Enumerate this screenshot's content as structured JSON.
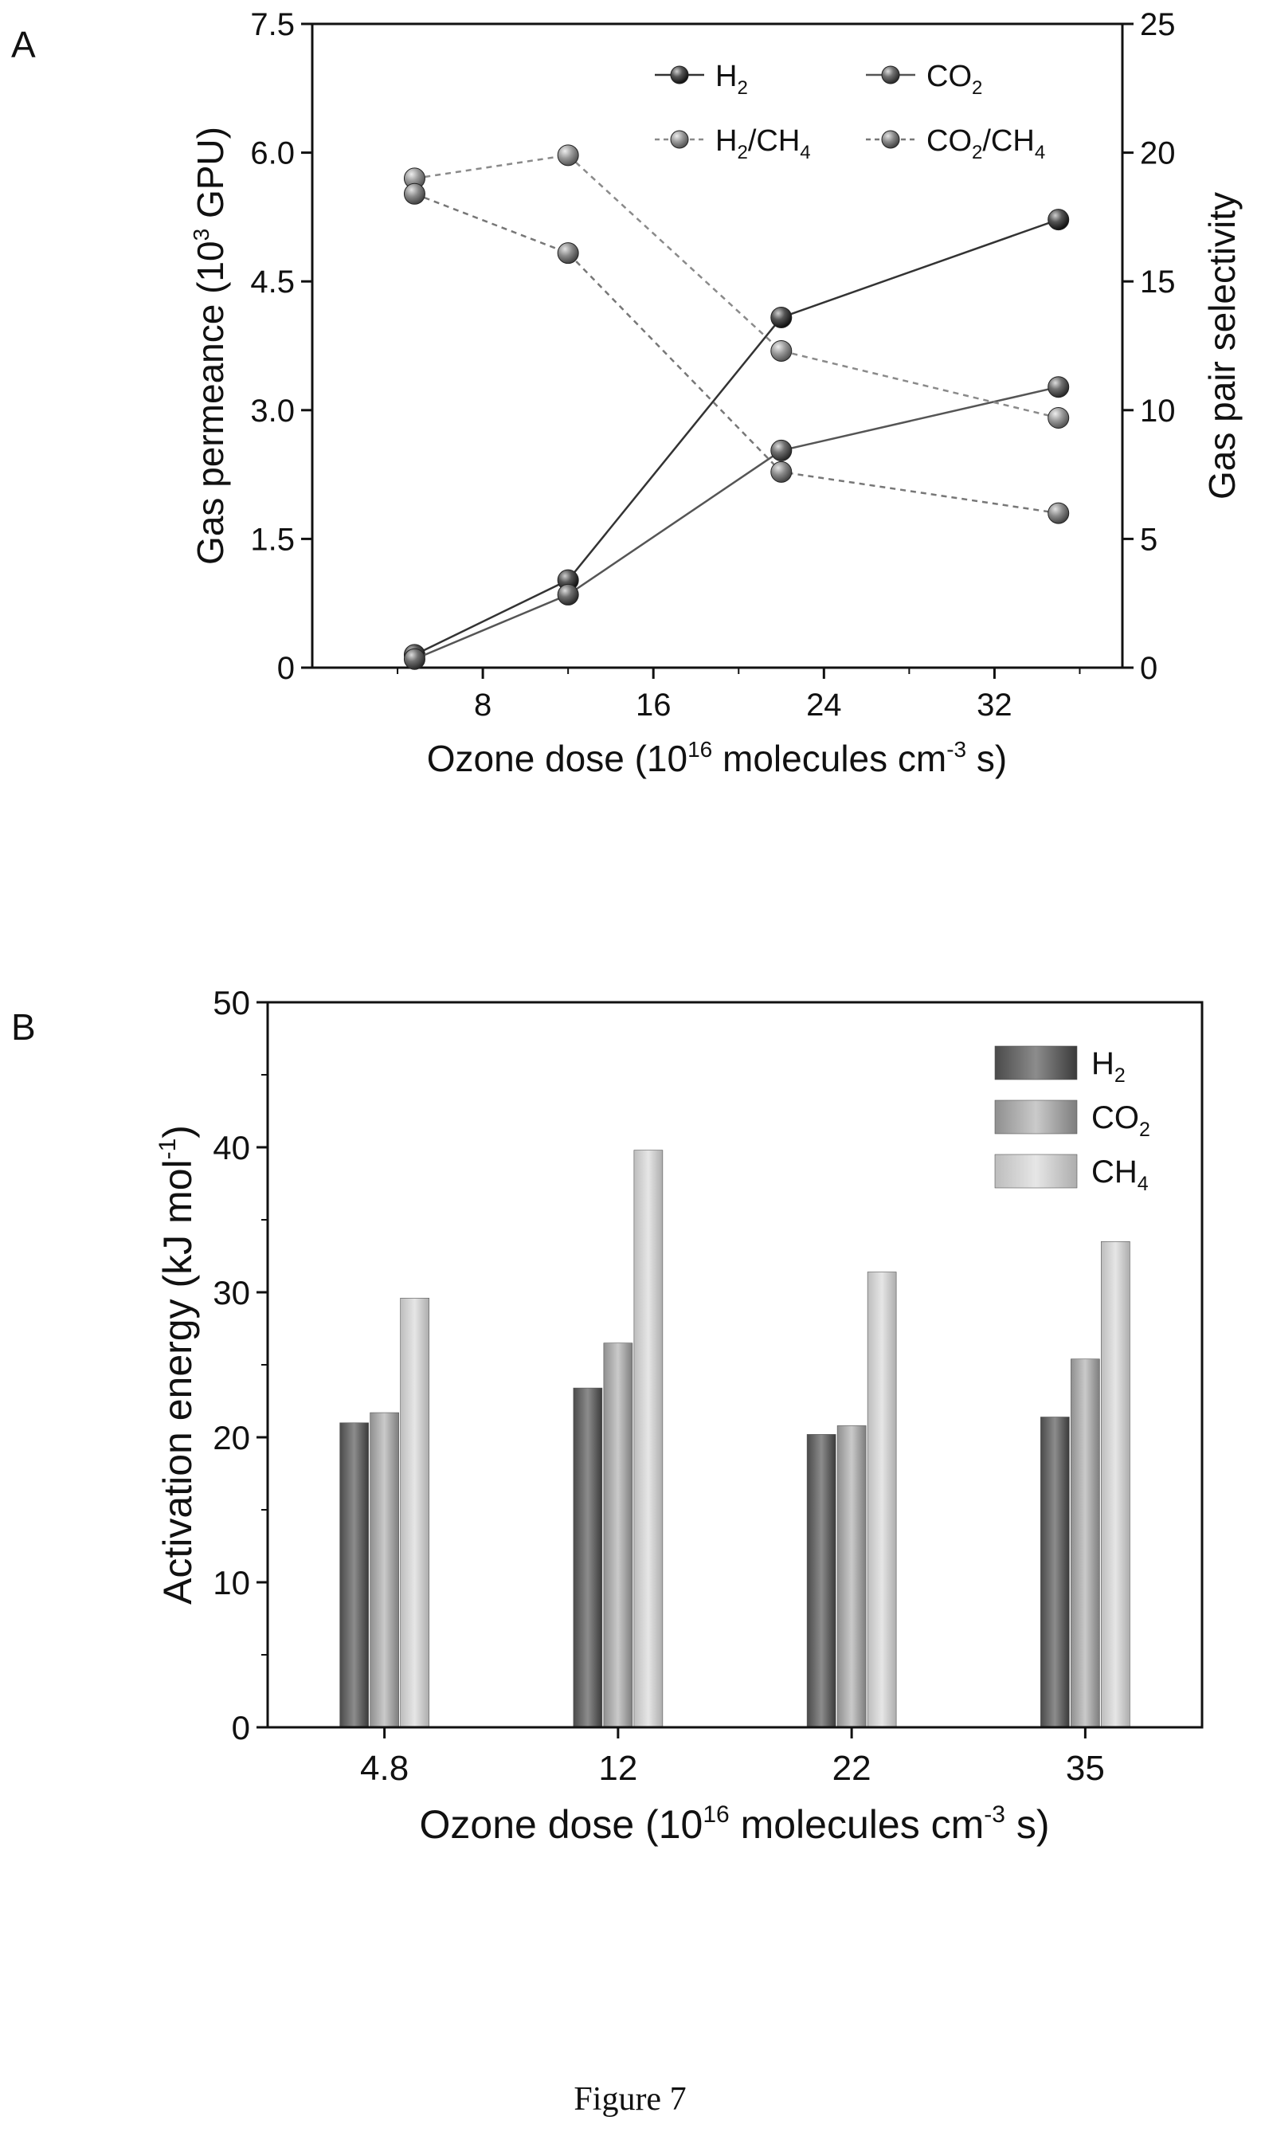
{
  "figure_caption": "Figure 7",
  "chart_data": [
    {
      "panel_label": "A",
      "type": "line",
      "xlabel": "Ozone dose (10",
      "xlabel_sup": "16",
      "xlabel_mid": " molecules cm",
      "xlabel_sup2": "-3",
      "xlabel_end": " s)",
      "ylabel_left": "Gas permeance (10",
      "ylabel_left_sup": "3",
      "ylabel_left_end": " GPU)",
      "ylabel_right": "Gas pair selectivity",
      "xlim": [
        0,
        38
      ],
      "ylim_left": [
        0,
        7.5
      ],
      "ylim_right": [
        0,
        25
      ],
      "x_ticks": [
        8,
        16,
        24,
        32
      ],
      "y_ticks_left": [
        "0",
        "1.5",
        "3.0",
        "4.5",
        "6.0",
        "7.5"
      ],
      "y_ticks_right": [
        "0",
        "5",
        "10",
        "15",
        "20",
        "25"
      ],
      "x": [
        4.8,
        12,
        22,
        35
      ],
      "series": [
        {
          "name": "H",
          "sub": "2",
          "axis": "left",
          "style": "solid",
          "color": "#333333",
          "values": [
            0.15,
            1.02,
            4.08,
            5.22
          ]
        },
        {
          "name": "CO",
          "sub": "2",
          "axis": "left",
          "style": "solid",
          "color": "#555555",
          "values": [
            0.1,
            0.85,
            2.53,
            3.27
          ]
        },
        {
          "name": "H",
          "sub": "2",
          "name_after": "/CH",
          "sub2": "4",
          "axis": "right",
          "style": "dashed",
          "color": "#8a8a8a",
          "values": [
            19.0,
            19.9,
            12.3,
            9.7
          ]
        },
        {
          "name": "CO",
          "sub": "2",
          "name_after": "/CH",
          "sub2": "4",
          "axis": "right",
          "style": "dashed",
          "color": "#777777",
          "values": [
            18.4,
            16.1,
            7.6,
            6.0
          ]
        }
      ],
      "legend_position": "top-right"
    },
    {
      "panel_label": "B",
      "type": "bar",
      "categories": [
        "4.8",
        "12",
        "22",
        "35"
      ],
      "xlabel": "Ozone dose (10",
      "xlabel_sup": "16",
      "xlabel_mid": " molecules cm",
      "xlabel_sup2": "-3",
      "xlabel_end": " s)",
      "ylabel": "Activation energy (kJ mol",
      "ylabel_sup": "-1",
      "ylabel_end": ")",
      "ylim": [
        0,
        50
      ],
      "y_ticks": [
        "0",
        "10",
        "20",
        "30",
        "40",
        "50"
      ],
      "series": [
        {
          "name": "H",
          "sub": "2",
          "color": "#6e6e6e",
          "values": [
            21.0,
            23.4,
            20.2,
            21.4
          ]
        },
        {
          "name": "CO",
          "sub": "2",
          "color": "#a9a9a9",
          "values": [
            21.7,
            26.5,
            20.8,
            25.4
          ]
        },
        {
          "name": "CH",
          "sub": "4",
          "color": "#cfcfcf",
          "values": [
            29.6,
            39.8,
            31.4,
            33.5
          ]
        }
      ],
      "legend_position": "top-right"
    }
  ]
}
